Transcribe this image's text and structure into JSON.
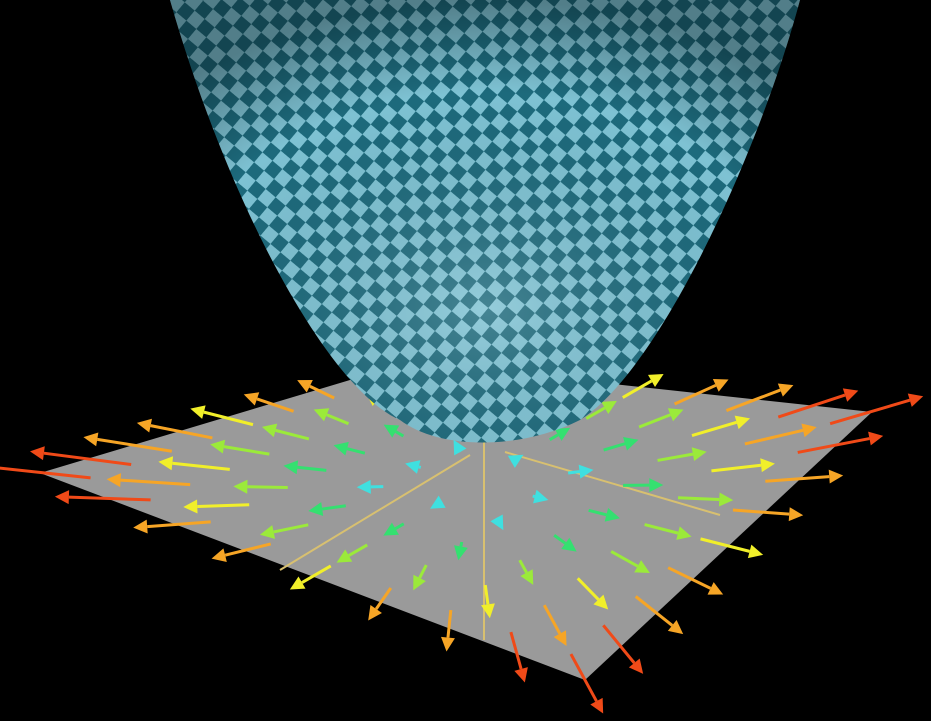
{
  "scene": {
    "background": "#000000",
    "plane_color": "#9a9a9a",
    "surface_colors": [
      "#1d6a7c",
      "#7ec2d3"
    ],
    "axis_color": "#d8c070",
    "arrow_palette": [
      "#1fa6ff",
      "#3fe0e0",
      "#34e070",
      "#9bea3a",
      "#f1ef2a",
      "#f6a526",
      "#f04a18",
      "#e01010"
    ]
  }
}
